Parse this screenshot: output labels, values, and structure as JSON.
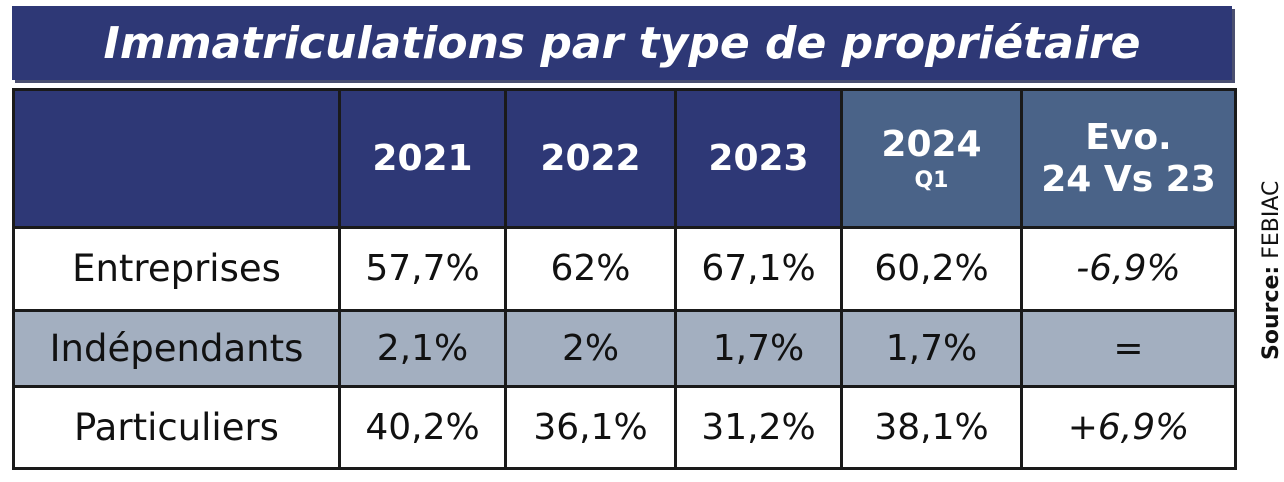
{
  "title": "Immatriculations par type de propriétaire",
  "source_label": "Source:",
  "source_name": "FEBIAC",
  "chart_data": {
    "type": "table",
    "title": "Immatriculations par type de propriétaire",
    "columns": [
      {
        "label": "2021",
        "sub": ""
      },
      {
        "label": "2022",
        "sub": ""
      },
      {
        "label": "2023",
        "sub": ""
      },
      {
        "label": "2024",
        "sub": "Q1"
      },
      {
        "label": "Evo.",
        "sub": "24 Vs 23"
      }
    ],
    "rows": [
      {
        "label": "Entreprises",
        "values": [
          "57,7%",
          "62%",
          "67,1%",
          "60,2%",
          "-6,9%"
        ]
      },
      {
        "label": "Indépendants",
        "values": [
          "2,1%",
          "2%",
          "1,7%",
          "1,7%",
          "="
        ]
      },
      {
        "label": "Particuliers",
        "values": [
          "40,2%",
          "36,1%",
          "31,2%",
          "38,1%",
          "+6,9%"
        ]
      }
    ]
  }
}
